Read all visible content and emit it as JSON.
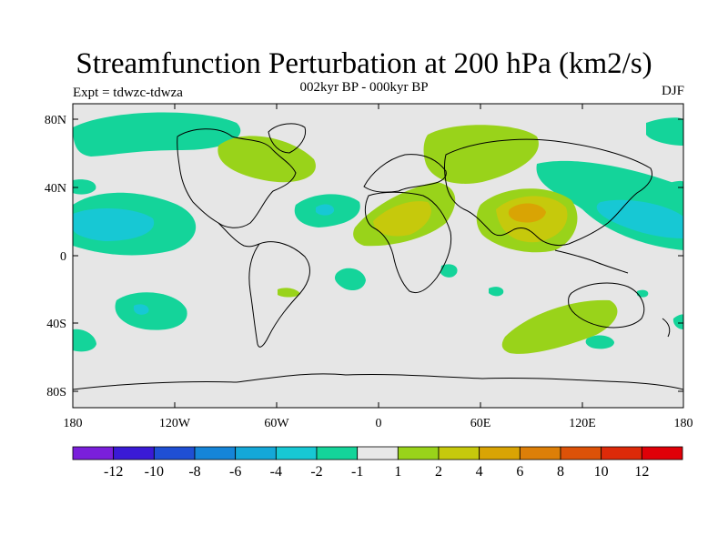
{
  "header": {
    "title": "Streamfunction Perturbation at 200 hPa (km2/s)",
    "subtitle": "002kyr BP - 000kyr BP",
    "experiment": "Expt = tdwzc-tdwza",
    "season": "DJF"
  },
  "map": {
    "background_color": "#e6e6e6",
    "lat_labels": [
      "80N",
      "40N",
      "0",
      "40S",
      "80S"
    ],
    "lon_labels": [
      "180",
      "120W",
      "60W",
      "0",
      "60E",
      "120E",
      "180"
    ]
  },
  "colorbar": {
    "labels": [
      "-12",
      "-10",
      "-8",
      "-6",
      "-4",
      "-2",
      "-1",
      "1",
      "2",
      "4",
      "6",
      "8",
      "10",
      "12"
    ],
    "colors": [
      "#7a1fdb",
      "#3a1ad6",
      "#1f4fd4",
      "#1585d8",
      "#14a8d8",
      "#17c8d4",
      "#14d49a",
      "#e8e8e8",
      "#99d31a",
      "#c6c90c",
      "#d9a404",
      "#dd7f08",
      "#dd5208",
      "#dd2a09",
      "#e00008"
    ]
  }
}
